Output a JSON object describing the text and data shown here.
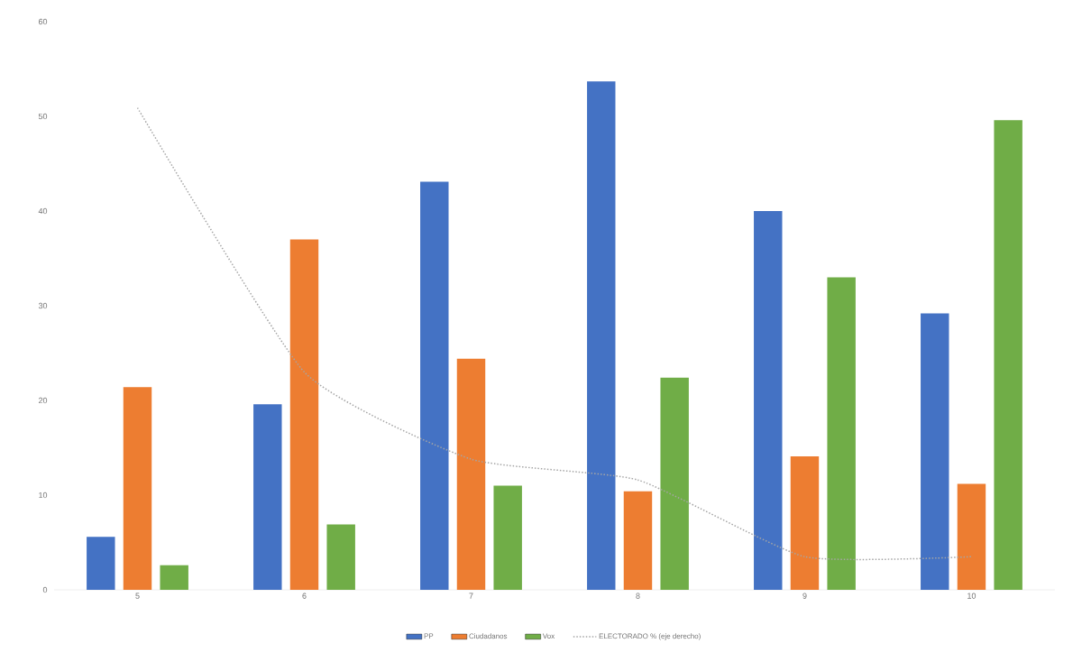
{
  "chart_data": {
    "type": "bar",
    "categories": [
      "5",
      "6",
      "7",
      "8",
      "9",
      "10"
    ],
    "series": [
      {
        "name": "PP",
        "color": "#4472c4",
        "values": [
          5.6,
          19.6,
          43.1,
          53.7,
          40,
          29.2
        ]
      },
      {
        "name": "Ciudadanos",
        "color": "#ed7d31",
        "values": [
          21.4,
          37,
          24.4,
          10.4,
          14.1,
          11.2
        ]
      },
      {
        "name": "Vox",
        "color": "#70ad47",
        "values": [
          2.6,
          6.9,
          11,
          22.4,
          33,
          49.6
        ]
      },
      {
        "name": "ELECTORADO % (eje derecho)",
        "type": "line",
        "color": "#a5a5a5",
        "line_style": "dotted",
        "values": [
          50.9,
          23,
          13.8,
          11.6,
          3.5,
          3.5
        ]
      }
    ],
    "ylim": [
      0,
      60
    ],
    "yticks": [
      0,
      10,
      20,
      30,
      40,
      50,
      60
    ],
    "legend": "bottom"
  }
}
